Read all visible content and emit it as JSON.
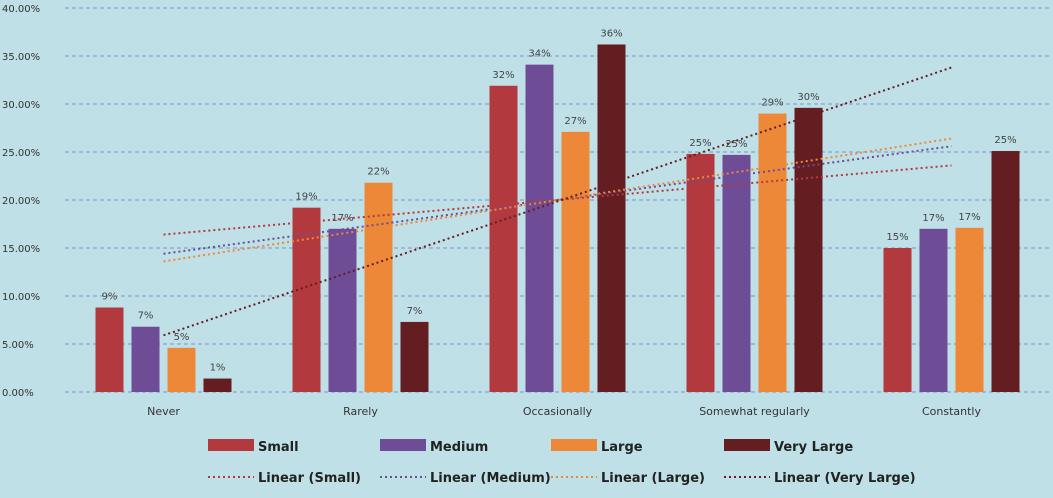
{
  "chart_data": {
    "type": "bar",
    "categories": [
      "Never",
      "Rarely",
      "Occasionally",
      "Somewhat regularly",
      "Constantly"
    ],
    "series": [
      {
        "name": "Small",
        "color": "#b23a3e",
        "values": [
          8.8,
          19.2,
          31.9,
          24.8,
          15.0
        ],
        "labels": [
          "9%",
          "19%",
          "32%",
          "25%",
          "15%"
        ]
      },
      {
        "name": "Medium",
        "color": "#6e4c96",
        "values": [
          6.8,
          17.0,
          34.1,
          24.7,
          17.0
        ],
        "labels": [
          "7%",
          "17%",
          "34%",
          "25%",
          "17%"
        ]
      },
      {
        "name": "Large",
        "color": "#ec8838",
        "values": [
          4.6,
          21.8,
          27.1,
          29.0,
          17.1
        ],
        "labels": [
          "5%",
          "22%",
          "27%",
          "29%",
          "17%"
        ]
      },
      {
        "name": "Very Large",
        "color": "#641d21",
        "values": [
          1.4,
          7.3,
          36.2,
          29.6,
          25.1
        ],
        "labels": [
          "1%",
          "7%",
          "36%",
          "30%",
          "25%"
        ]
      }
    ],
    "trendlines": [
      {
        "name": "Linear (Small)",
        "color": "#b23a3e",
        "start": 16.4,
        "end": 23.6
      },
      {
        "name": "Linear (Medium)",
        "color": "#6e4c96",
        "start": 14.4,
        "end": 25.6
      },
      {
        "name": "Linear (Large)",
        "color": "#ec8838",
        "start": 13.6,
        "end": 26.4
      },
      {
        "name": "Linear (Very Large)",
        "color": "#641d21",
        "start": 5.9,
        "end": 33.8
      }
    ],
    "y_ticks": [
      "0.00%",
      "5.00%",
      "10.00%",
      "15.00%",
      "20.00%",
      "25.00%",
      "30.00%",
      "35.00%",
      "40.00%"
    ],
    "ylim": [
      0,
      40
    ],
    "grid": true,
    "legend_position": "bottom",
    "title": "",
    "xlabel": "",
    "ylabel": ""
  }
}
